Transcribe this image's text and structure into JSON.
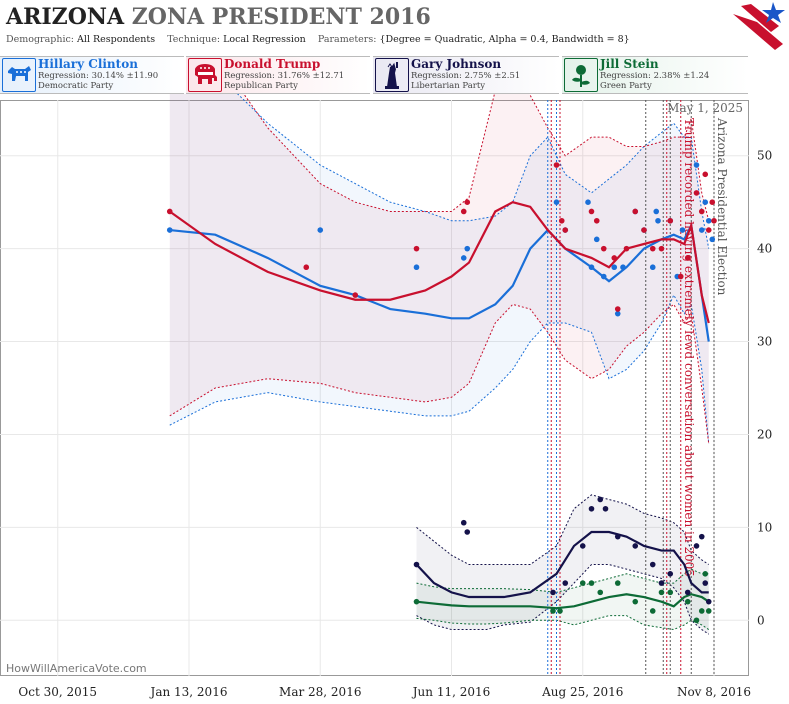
{
  "header": {
    "state": "ARIZONA",
    "rest": "ZONA PRESIDENT 2016",
    "demographic_label": "Demographic:",
    "demographic": "All Respondents",
    "technique_label": "Technique:",
    "technique": "Local Regression",
    "parameters_label": "Parameters:",
    "parameters": "{Degree = Quadratic, Alpha = 0.4, Bandwidth = 8}"
  },
  "candidates": [
    {
      "name": "Hillary Clinton",
      "regression": "Regression: 30.14% ±11.90",
      "party": "Democratic Party",
      "color": "#1a6fd8",
      "bg": "#e6f0fb",
      "icon": "donkey-icon"
    },
    {
      "name": "Donald Trump",
      "regression": "Regression: 31.76% ±12.71",
      "party": "Republican Party",
      "color": "#c8102e",
      "bg": "#fbe6ea",
      "icon": "elephant-icon"
    },
    {
      "name": "Gary Johnson",
      "regression": "Regression: 2.75% ±2.51",
      "party": "Libertarian Party",
      "color": "#14124a",
      "bg": "#e9e8f2",
      "icon": "liberty-icon"
    },
    {
      "name": "Jill Stein",
      "regression": "Regression: 2.38% ±1.24",
      "party": "Green Party",
      "color": "#0d6b36",
      "bg": "#e4f2ea",
      "icon": "rose-icon"
    }
  ],
  "chart_data": {
    "type": "line",
    "x_ticks": [
      "Oct 30, 2015",
      "Jan 13, 2016",
      "Mar 28, 2016",
      "Jun 11, 2016",
      "Aug 25, 2016",
      "Nov 8, 2016"
    ],
    "x_tick_days": [
      0,
      75,
      150,
      225,
      300,
      375
    ],
    "ylim": [
      -6,
      56
    ],
    "y_ticks": [
      0,
      10,
      20,
      30,
      40,
      50
    ],
    "grid": true,
    "today_label": "May 1, 2025",
    "watermark": "HowWillAmericaVote.com",
    "event_lines": [
      {
        "day": 280,
        "color": "#1a6fd8",
        "label": ""
      },
      {
        "day": 282,
        "color": "#c8102e",
        "label": ""
      },
      {
        "day": 285,
        "color": "#1a6fd8",
        "label": ""
      },
      {
        "day": 287,
        "color": "#c8102e",
        "label": ""
      },
      {
        "day": 336,
        "color": "#555555",
        "label": ""
      },
      {
        "day": 346,
        "color": "#555555",
        "label": ""
      },
      {
        "day": 348,
        "color": "#c8102e",
        "label": ""
      },
      {
        "day": 350,
        "color": "#555555",
        "label": ""
      },
      {
        "day": 356,
        "color": "#c8102e",
        "label": "Trump recorded having extremely lewd conversation about women in 2005"
      },
      {
        "day": 362,
        "color": "#555555",
        "label": ""
      },
      {
        "day": 375,
        "color": "#555555",
        "label": "Arizona Presidential Election"
      }
    ],
    "series": [
      {
        "name": "Hillary Clinton",
        "color": "#1a6fd8",
        "x": [
          64,
          90,
          120,
          150,
          170,
          190,
          210,
          225,
          235,
          250,
          260,
          270,
          280,
          290,
          305,
          315,
          325,
          335,
          345,
          352,
          358,
          362,
          368,
          372
        ],
        "y": [
          42,
          41.5,
          39,
          36,
          35,
          33.5,
          33,
          32.5,
          32.5,
          34,
          36,
          40,
          42,
          40,
          38,
          36.5,
          38,
          40,
          41,
          41.5,
          41,
          42.5,
          35,
          30
        ],
        "lower": [
          21,
          23.5,
          24.5,
          23.5,
          23,
          22.5,
          22,
          22,
          22.5,
          25,
          27,
          30,
          32,
          32,
          31,
          26,
          27,
          29,
          32,
          35,
          33,
          34,
          27,
          19
        ],
        "upper": [
          61,
          59,
          53.5,
          49,
          47,
          45,
          44,
          43,
          43,
          43.5,
          45,
          50,
          52,
          48,
          46,
          47.5,
          49,
          51,
          52.5,
          53.5,
          52,
          52,
          44,
          40
        ],
        "points_x": [
          64,
          150,
          205,
          232,
          234,
          285,
          290,
          303,
          305,
          308,
          312,
          318,
          320,
          323,
          330,
          335,
          340,
          342,
          343,
          350,
          354,
          357,
          365,
          368,
          370,
          372,
          374
        ],
        "points_y": [
          42,
          42,
          38,
          39,
          40,
          45,
          42,
          45,
          38,
          41,
          37,
          38,
          33,
          38,
          44,
          42,
          38,
          44,
          43,
          43,
          37,
          42,
          49,
          42,
          45,
          43,
          41
        ]
      },
      {
        "name": "Donald Trump",
        "color": "#c8102e",
        "x": [
          64,
          90,
          120,
          150,
          170,
          190,
          210,
          225,
          235,
          250,
          260,
          270,
          280,
          290,
          305,
          315,
          325,
          335,
          345,
          352,
          358,
          362,
          368,
          372
        ],
        "y": [
          44,
          40.5,
          37.5,
          35.5,
          34.5,
          34.5,
          35.5,
          37,
          38.5,
          44,
          45,
          44.5,
          42,
          40,
          39,
          38,
          40,
          40.5,
          41,
          41,
          40.5,
          42.5,
          35,
          32
        ],
        "lower": [
          22,
          25,
          26,
          25.5,
          24.5,
          24,
          23.5,
          24,
          25.5,
          32,
          34,
          33.5,
          31,
          28,
          26,
          27,
          29.5,
          31,
          33,
          34,
          32,
          33,
          25,
          19
        ],
        "upper": [
          66,
          61,
          53,
          47,
          45,
          44,
          44,
          44,
          45.5,
          57,
          60,
          56.5,
          53,
          50,
          52,
          52,
          51,
          51,
          51.5,
          52,
          52,
          54,
          46,
          43
        ],
        "points_x": [
          64,
          142,
          170,
          205,
          232,
          234,
          285,
          288,
          290,
          305,
          308,
          312,
          318,
          320,
          325,
          330,
          335,
          340,
          345,
          350,
          356,
          360,
          365,
          368,
          370,
          372,
          374,
          375
        ],
        "points_y": [
          44,
          38,
          35,
          40,
          44,
          45,
          49,
          43,
          42,
          44,
          43,
          40,
          39,
          33.5,
          40,
          44,
          42,
          40,
          40,
          43,
          37,
          39,
          46,
          44,
          48,
          42,
          45,
          43
        ]
      },
      {
        "name": "Gary Johnson",
        "color": "#14124a",
        "x": [
          205,
          215,
          225,
          235,
          245,
          255,
          270,
          285,
          295,
          305,
          315,
          325,
          335,
          345,
          352,
          358,
          362,
          368,
          372
        ],
        "y": [
          6,
          4,
          3,
          2.5,
          2.5,
          2.5,
          3,
          5,
          8,
          9.5,
          9.5,
          9,
          8,
          7.5,
          7.5,
          6,
          4,
          3,
          3
        ],
        "lower": [
          0.5,
          -0.5,
          -1,
          -1,
          -1,
          -0.5,
          -0.2,
          2,
          4,
          6,
          6,
          5.5,
          5,
          4.5,
          3.5,
          2,
          0,
          -1,
          -1.5
        ],
        "upper": [
          10,
          8.5,
          7,
          6,
          6,
          6,
          6,
          8,
          12,
          13.5,
          13,
          12.5,
          11.5,
          11,
          10.5,
          9.5,
          7.5,
          6.5,
          6
        ],
        "points_x": [
          205,
          232,
          234,
          283,
          290,
          300,
          305,
          310,
          313,
          320,
          330,
          340,
          345,
          350,
          360,
          365,
          368,
          370,
          372
        ],
        "points_y": [
          6,
          10.5,
          9.5,
          3,
          4,
          8,
          12,
          13,
          12,
          9,
          8,
          6,
          4,
          5,
          3,
          8,
          9,
          4,
          2
        ]
      },
      {
        "name": "Jill Stein",
        "color": "#0d6b36",
        "x": [
          205,
          215,
          225,
          235,
          245,
          255,
          270,
          285,
          295,
          305,
          315,
          325,
          335,
          345,
          352,
          358,
          362,
          368,
          372
        ],
        "y": [
          2,
          1.8,
          1.6,
          1.5,
          1.5,
          1.5,
          1.5,
          1.3,
          1.5,
          2,
          2.5,
          2.8,
          2.5,
          2,
          1.5,
          2.5,
          2.8,
          2.5,
          2
        ],
        "lower": [
          0.2,
          0,
          -0.3,
          -0.4,
          -0.4,
          -0.3,
          0,
          0,
          -0.5,
          0,
          0.5,
          0.5,
          -0.5,
          -0.8,
          -1,
          -0.5,
          0,
          -0.5,
          -1
        ],
        "upper": [
          4,
          3.6,
          3.4,
          3.4,
          3.4,
          3.4,
          3.3,
          3,
          3.5,
          4,
          4.5,
          5,
          4.5,
          4,
          4,
          5,
          5.5,
          5,
          5
        ],
        "points_x": [
          205,
          283,
          287,
          300,
          305,
          310,
          320,
          330,
          340,
          345,
          350,
          360,
          365,
          368,
          370,
          372
        ],
        "points_y": [
          2,
          1,
          1,
          4,
          4,
          3,
          4,
          2,
          1,
          3,
          3,
          2,
          0,
          1,
          5,
          1
        ]
      }
    ]
  }
}
